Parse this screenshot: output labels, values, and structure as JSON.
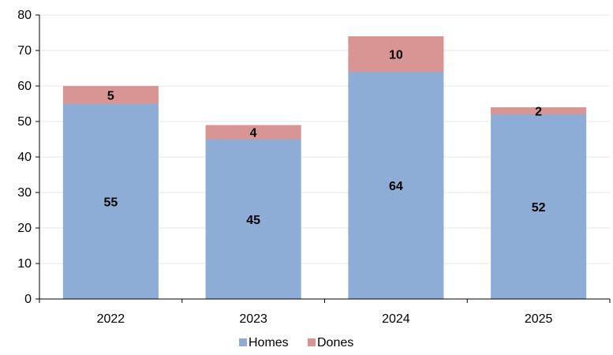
{
  "chart_data": {
    "type": "bar",
    "stacked": true,
    "categories": [
      "2022",
      "2023",
      "2024",
      "2025"
    ],
    "series": [
      {
        "name": "Homes",
        "values": [
          55,
          45,
          64,
          52
        ],
        "color": "#8eadd6"
      },
      {
        "name": "Dones",
        "values": [
          5,
          4,
          10,
          2
        ],
        "color": "#d99594"
      }
    ],
    "ylim": [
      0,
      80
    ],
    "yticks": [
      0,
      10,
      20,
      30,
      40,
      50,
      60,
      70,
      80
    ],
    "grid": true,
    "legend": "bottom-center"
  }
}
